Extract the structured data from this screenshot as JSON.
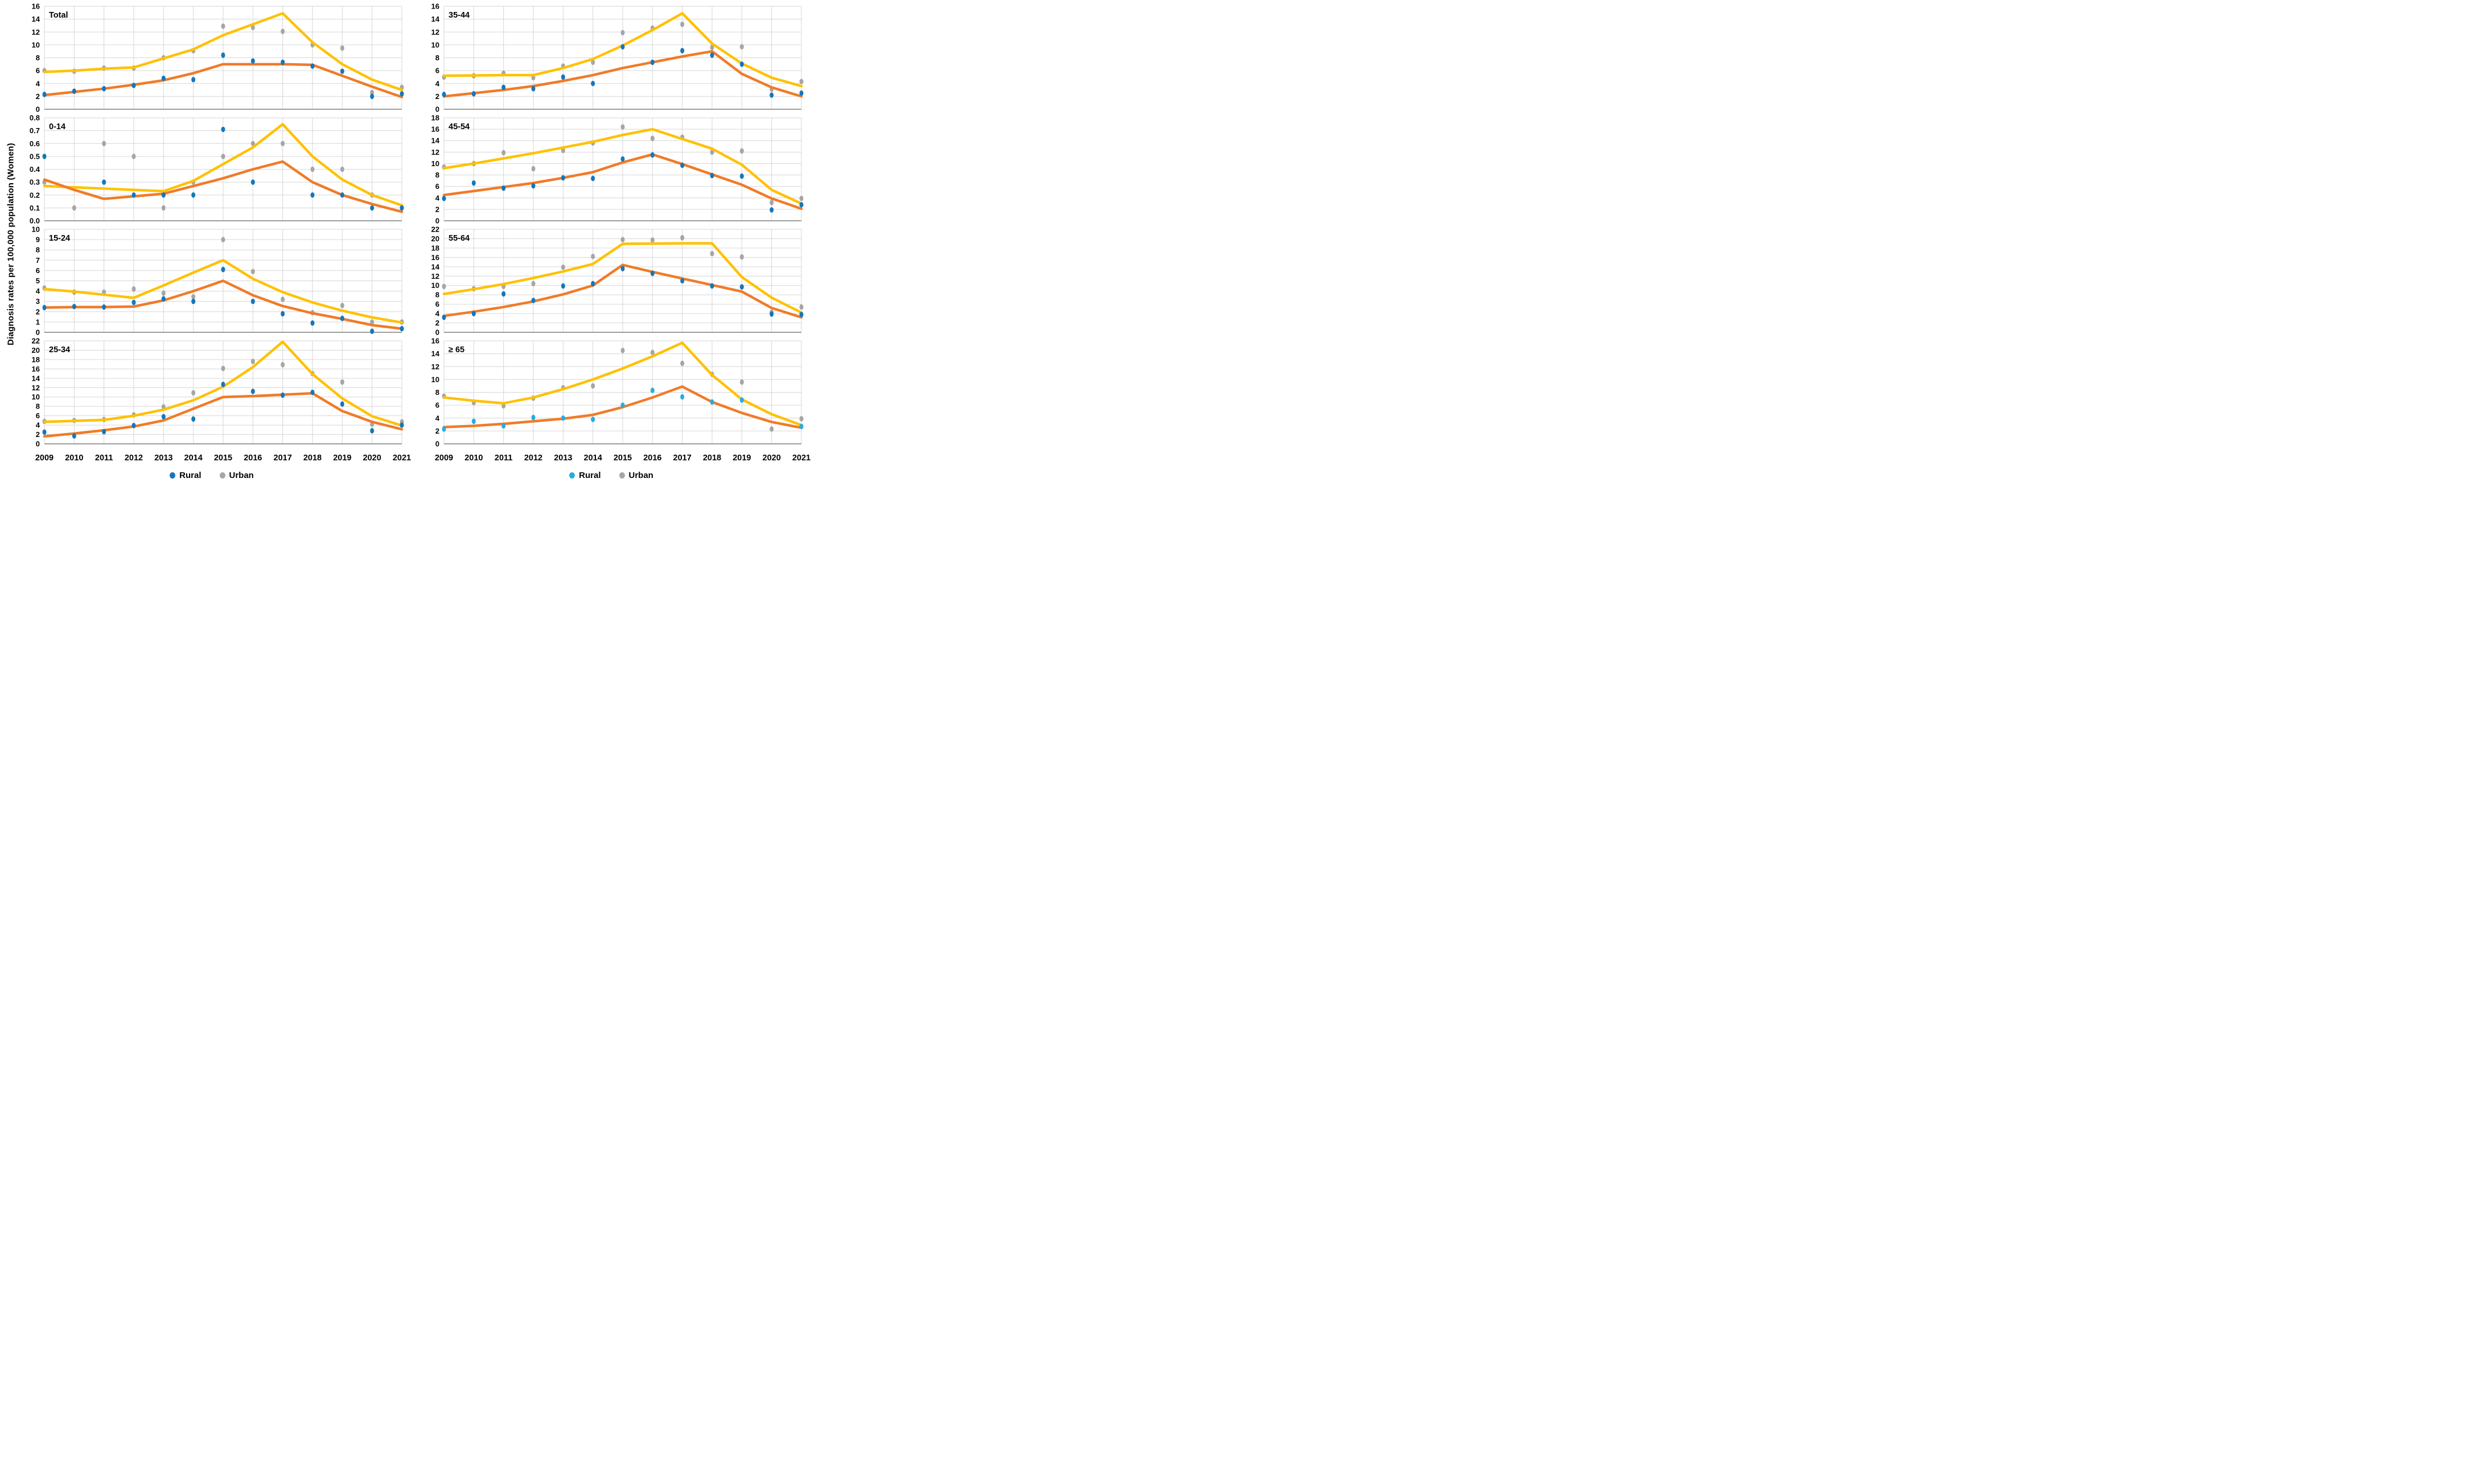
{
  "figure": {
    "y_axis_title": "Diagnosis rates per 100,000 population (Women)",
    "years": [
      "2009",
      "2010",
      "2011",
      "2012",
      "2013",
      "2014",
      "2015",
      "2016",
      "2017",
      "2018",
      "2019",
      "2020",
      "2021"
    ],
    "legend_left": {
      "rural_label": "Rural",
      "urban_label": "Urban",
      "rural_color": "#1377BE",
      "urban_color": "#A6A6A6"
    },
    "legend_right": {
      "rural_label": "Rural",
      "urban_label": "Urban",
      "rural_color": "#29ABE2",
      "urban_color": "#A6A6A6"
    },
    "colors": {
      "rural_point_dark": "#1377BE",
      "rural_point_light": "#29ABE2",
      "urban_point": "#A6A6A6",
      "rural_trend": "#F07B28",
      "urban_trend": "#FFC100",
      "grid": "#D6D6D6",
      "axis": "#9E9E9E"
    }
  },
  "chart_data": [
    {
      "id": "total",
      "title": "Total",
      "type": "scatter",
      "col": "left",
      "ylim": [
        0,
        16
      ],
      "ystep": 2,
      "ydecimals": 0,
      "grid": true,
      "x": [
        "2009",
        "2010",
        "2011",
        "2012",
        "2013",
        "2014",
        "2015",
        "2016",
        "2017",
        "2018",
        "2019",
        "2020",
        "2021"
      ],
      "series_note": "points = observed rates, trend = fitted joinpoint line",
      "rural_points": [
        2.3,
        2.8,
        3.2,
        3.7,
        4.8,
        4.6,
        8.4,
        7.5,
        7.3,
        6.7,
        5.9,
        2.0,
        2.4
      ],
      "urban_points": [
        6.0,
        5.9,
        6.4,
        6.4,
        8.0,
        9.1,
        12.9,
        12.7,
        12.1,
        10.0,
        9.5,
        2.6,
        3.4
      ],
      "rural_trend": [
        2.2,
        2.7,
        3.2,
        3.8,
        4.5,
        5.6,
        7.0,
        7.0,
        7.0,
        6.9,
        5.2,
        3.5,
        1.9
      ],
      "urban_trend": [
        5.8,
        6.0,
        6.3,
        6.5,
        7.9,
        9.3,
        11.5,
        13.2,
        14.9,
        10.4,
        7.0,
        4.6,
        3.0
      ],
      "rural_point_color": "dark"
    },
    {
      "id": "0-14",
      "title": "0-14",
      "type": "scatter",
      "col": "left",
      "ylim": [
        0,
        0.8
      ],
      "ystep": 0.1,
      "ydecimals": 1,
      "grid": true,
      "x": [
        "2009",
        "2010",
        "2011",
        "2012",
        "2013",
        "2014",
        "2015",
        "2016",
        "2017",
        "2018",
        "2019",
        "2020",
        "2021"
      ],
      "rural_points": [
        0.5,
        null,
        0.3,
        0.2,
        0.2,
        0.2,
        0.71,
        0.3,
        null,
        0.2,
        0.2,
        0.1,
        0.1
      ],
      "urban_points": [
        0.3,
        0.1,
        0.6,
        0.5,
        0.1,
        0.3,
        0.5,
        0.6,
        0.6,
        0.4,
        0.4,
        0.2,
        0.1
      ],
      "rural_trend": [
        0.32,
        0.24,
        0.17,
        0.19,
        0.21,
        0.27,
        0.33,
        0.4,
        0.46,
        0.3,
        0.2,
        0.13,
        0.07
      ],
      "urban_trend": [
        0.27,
        0.26,
        0.25,
        0.24,
        0.23,
        0.31,
        0.44,
        0.57,
        0.75,
        0.5,
        0.32,
        0.2,
        0.12
      ],
      "rural_point_color": "dark"
    },
    {
      "id": "15-24",
      "title": "15-24",
      "type": "scatter",
      "col": "left",
      "ylim": [
        0,
        10
      ],
      "ystep": 1,
      "ydecimals": 0,
      "grid": true,
      "x": [
        "2009",
        "2010",
        "2011",
        "2012",
        "2013",
        "2014",
        "2015",
        "2016",
        "2017",
        "2018",
        "2019",
        "2020",
        "2021"
      ],
      "rural_points": [
        2.4,
        2.5,
        2.45,
        2.9,
        3.25,
        3.0,
        6.1,
        3.0,
        1.8,
        0.9,
        1.35,
        0.1,
        0.35
      ],
      "urban_points": [
        4.3,
        3.9,
        3.9,
        4.2,
        3.8,
        3.45,
        9.0,
        5.9,
        3.2,
        1.9,
        2.6,
        1.0,
        1.0
      ],
      "rural_trend": [
        2.4,
        2.45,
        2.45,
        2.5,
        3.1,
        4.0,
        5.0,
        3.6,
        2.55,
        1.85,
        1.3,
        0.7,
        0.35
      ],
      "urban_trend": [
        4.2,
        3.95,
        3.65,
        3.35,
        4.55,
        5.8,
        7.0,
        5.2,
        3.9,
        2.9,
        2.1,
        1.45,
        0.95
      ],
      "rural_point_color": "dark"
    },
    {
      "id": "25-34",
      "title": "25-34",
      "type": "scatter",
      "col": "left",
      "ylim": [
        0,
        22
      ],
      "ystep": 2,
      "ydecimals": 0,
      "grid": true,
      "x": [
        "2009",
        "2010",
        "2011",
        "2012",
        "2013",
        "2014",
        "2015",
        "2016",
        "2017",
        "2018",
        "2019",
        "2020",
        "2021"
      ],
      "rural_points": [
        2.5,
        1.7,
        2.6,
        3.9,
        5.8,
        5.3,
        12.7,
        11.2,
        10.4,
        11.0,
        8.5,
        2.8,
        4.0
      ],
      "urban_points": [
        4.8,
        5.0,
        5.2,
        6.2,
        7.9,
        10.9,
        16.1,
        17.6,
        16.9,
        15.0,
        13.2,
        4.2,
        4.7
      ],
      "rural_trend": [
        1.6,
        2.2,
        2.9,
        3.7,
        5.0,
        7.5,
        10.0,
        10.2,
        10.5,
        10.8,
        7.0,
        4.7,
        3.1
      ],
      "urban_trend": [
        4.7,
        4.9,
        5.1,
        6.0,
        7.3,
        9.3,
        12.2,
        16.4,
        21.8,
        14.9,
        9.7,
        5.9,
        3.9
      ],
      "rural_point_color": "dark"
    },
    {
      "id": "35-44",
      "title": "35-44",
      "type": "scatter",
      "col": "right",
      "ylim": [
        0,
        16
      ],
      "ystep": 2,
      "ydecimals": 0,
      "grid": true,
      "x": [
        "2009",
        "2010",
        "2011",
        "2012",
        "2013",
        "2014",
        "2015",
        "2016",
        "2017",
        "2018",
        "2019",
        "2020",
        "2021"
      ],
      "rural_points": [
        2.3,
        2.4,
        3.4,
        3.2,
        5.0,
        4.0,
        9.7,
        7.3,
        9.1,
        8.4,
        7.0,
        2.2,
        2.5
      ],
      "urban_points": [
        5.0,
        5.2,
        5.6,
        4.9,
        6.7,
        7.3,
        11.9,
        12.6,
        13.2,
        9.6,
        9.7,
        3.1,
        4.3
      ],
      "rural_trend": [
        2.0,
        2.5,
        3.0,
        3.6,
        4.4,
        5.3,
        6.4,
        7.3,
        8.2,
        9.0,
        5.5,
        3.4,
        2.0
      ],
      "urban_trend": [
        5.2,
        5.25,
        5.3,
        5.3,
        6.4,
        7.8,
        9.9,
        12.3,
        14.9,
        10.2,
        7.1,
        4.9,
        3.6
      ],
      "rural_point_color": "dark"
    },
    {
      "id": "45-54",
      "title": "45-54",
      "type": "scatter",
      "col": "right",
      "ylim": [
        0,
        18
      ],
      "ystep": 2,
      "ydecimals": 0,
      "grid": true,
      "x": [
        "2009",
        "2010",
        "2011",
        "2012",
        "2013",
        "2014",
        "2015",
        "2016",
        "2017",
        "2018",
        "2019",
        "2020",
        "2021"
      ],
      "rural_points": [
        3.9,
        6.6,
        5.7,
        6.1,
        7.5,
        7.4,
        10.8,
        11.5,
        9.7,
        7.9,
        7.8,
        1.9,
        2.8
      ],
      "urban_points": [
        9.4,
        10.0,
        11.9,
        9.1,
        12.3,
        13.6,
        16.4,
        14.4,
        14.6,
        12.0,
        12.2,
        3.2,
        3.9
      ],
      "rural_trend": [
        4.5,
        5.2,
        5.9,
        6.6,
        7.5,
        8.5,
        10.2,
        11.6,
        9.9,
        8.1,
        6.3,
        3.9,
        2.1
      ],
      "urban_trend": [
        9.2,
        10.0,
        10.9,
        11.8,
        12.8,
        13.8,
        15.0,
        16.0,
        14.3,
        12.6,
        9.8,
        5.4,
        3.0
      ],
      "rural_point_color": "dark"
    },
    {
      "id": "55-64",
      "title": "55-64",
      "type": "scatter",
      "col": "right",
      "ylim": [
        0,
        22
      ],
      "ystep": 2,
      "ydecimals": 0,
      "grid": true,
      "x": [
        "2009",
        "2010",
        "2011",
        "2012",
        "2013",
        "2014",
        "2015",
        "2016",
        "2017",
        "2018",
        "2019",
        "2020",
        "2021"
      ],
      "rural_points": [
        3.2,
        4.0,
        8.2,
        6.8,
        9.9,
        10.4,
        13.6,
        12.6,
        11.0,
        9.9,
        9.7,
        3.9,
        3.8
      ],
      "urban_points": [
        9.8,
        9.3,
        9.8,
        10.4,
        13.9,
        16.2,
        19.8,
        19.7,
        20.2,
        16.8,
        16.1,
        4.3,
        5.4
      ],
      "rural_trend": [
        3.5,
        4.4,
        5.4,
        6.6,
        8.1,
        10.0,
        14.4,
        12.9,
        11.5,
        10.1,
        8.7,
        5.2,
        3.2
      ],
      "urban_trend": [
        8.2,
        9.2,
        10.3,
        11.6,
        13.0,
        14.6,
        18.9,
        18.95,
        19.0,
        19.0,
        11.8,
        7.4,
        4.2
      ],
      "rural_point_color": "dark"
    },
    {
      "id": "ge-65",
      "title": "≥ 65",
      "type": "scatter",
      "col": "right",
      "ylim": [
        0,
        16
      ],
      "ystep": 2,
      "ydecimals": 0,
      "grid": true,
      "x": [
        "2009",
        "2010",
        "2011",
        "2012",
        "2013",
        "2014",
        "2015",
        "2016",
        "2017",
        "2018",
        "2019",
        "2020",
        "2021"
      ],
      "rural_points": [
        2.3,
        3.5,
        2.8,
        4.1,
        4.0,
        3.8,
        6.0,
        8.3,
        7.3,
        6.5,
        6.8,
        null,
        2.7
      ],
      "urban_points": [
        7.4,
        6.4,
        5.9,
        7.1,
        8.7,
        9.0,
        14.5,
        14.2,
        12.5,
        10.8,
        9.6,
        2.3,
        3.9
      ],
      "rural_trend": [
        2.6,
        2.8,
        3.1,
        3.5,
        3.9,
        4.5,
        5.7,
        7.2,
        8.9,
        6.5,
        4.8,
        3.4,
        2.5
      ],
      "urban_trend": [
        7.2,
        6.7,
        6.3,
        7.2,
        8.5,
        10.0,
        11.7,
        13.6,
        15.7,
        10.7,
        6.9,
        4.6,
        2.9
      ],
      "rural_point_color": "light"
    }
  ]
}
